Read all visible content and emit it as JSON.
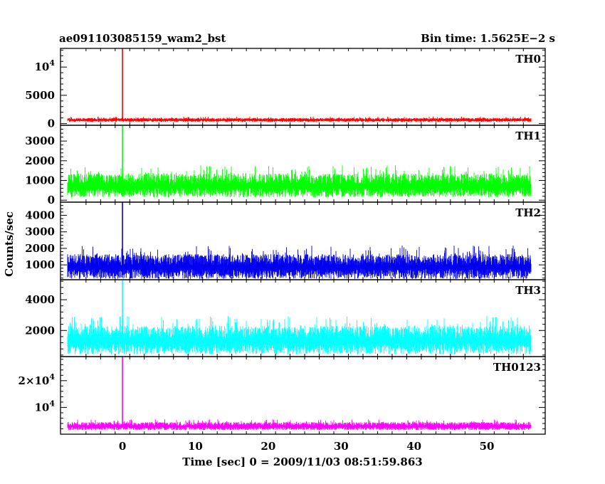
{
  "chart_data": {
    "type": "line",
    "title": "ae091103085159_wam2_bst",
    "bin_time_label": "Bin time: 1.5625E−2 s",
    "xlabel": "Time [sec] 0 = 2009/11/03 08:51:59.863",
    "ylabel": "Counts/sec",
    "xlim": [
      -8.5,
      58
    ],
    "x_ticks": [
      0,
      10,
      20,
      30,
      40,
      50
    ],
    "x_tick_labels": [
      "0",
      "10",
      "20",
      "30",
      "40",
      "50"
    ],
    "grid": false,
    "time_range": [
      -7.5,
      56
    ],
    "peak_time": 0,
    "series": [
      {
        "name": "TH0",
        "color": "#ff0000",
        "ylim": [
          -300,
          13300
        ],
        "y_ticks": [
          0,
          5000,
          10000
        ],
        "y_tick_labels": [
          {
            "text": "0"
          },
          {
            "text": "5000"
          },
          {
            "base": "10",
            "exp": "4"
          }
        ],
        "baseline_range": [
          300,
          1000
        ],
        "peak": 13300
      },
      {
        "name": "TH1",
        "color": "#00ff00",
        "ylim": [
          -100,
          3800
        ],
        "y_ticks": [
          0,
          1000,
          2000,
          3000
        ],
        "y_tick_labels": [
          {
            "text": "0"
          },
          {
            "text": "1000"
          },
          {
            "text": "2000"
          },
          {
            "text": "3000"
          }
        ],
        "baseline_range": [
          150,
          1350
        ],
        "peak": 3800
      },
      {
        "name": "TH2",
        "color": "#0000ee",
        "ylim": [
          100,
          4800
        ],
        "y_ticks": [
          1000,
          2000,
          3000,
          4000
        ],
        "y_tick_labels": [
          {
            "text": "1000"
          },
          {
            "text": "2000"
          },
          {
            "text": "3000"
          },
          {
            "text": "4000"
          }
        ],
        "baseline_range": [
          150,
          1650
        ],
        "peak": 4800
      },
      {
        "name": "TH3",
        "color": "#00ffff",
        "ylim": [
          300,
          5300
        ],
        "y_ticks": [
          2000,
          4000
        ],
        "y_tick_labels": [
          {
            "text": "2000"
          },
          {
            "text": "4000"
          }
        ],
        "baseline_range": [
          450,
          2300
        ],
        "peak": 5300
      },
      {
        "name": "TH0123",
        "color": "#ff00ff",
        "ylim": [
          0,
          29000
        ],
        "y_ticks": [
          10000,
          20000
        ],
        "y_tick_labels": [
          {
            "base": "10",
            "exp": "4"
          },
          {
            "base": "2×10",
            "exp": "4"
          }
        ],
        "baseline_range": [
          1500,
          4500
        ],
        "peak": 29000
      }
    ]
  }
}
